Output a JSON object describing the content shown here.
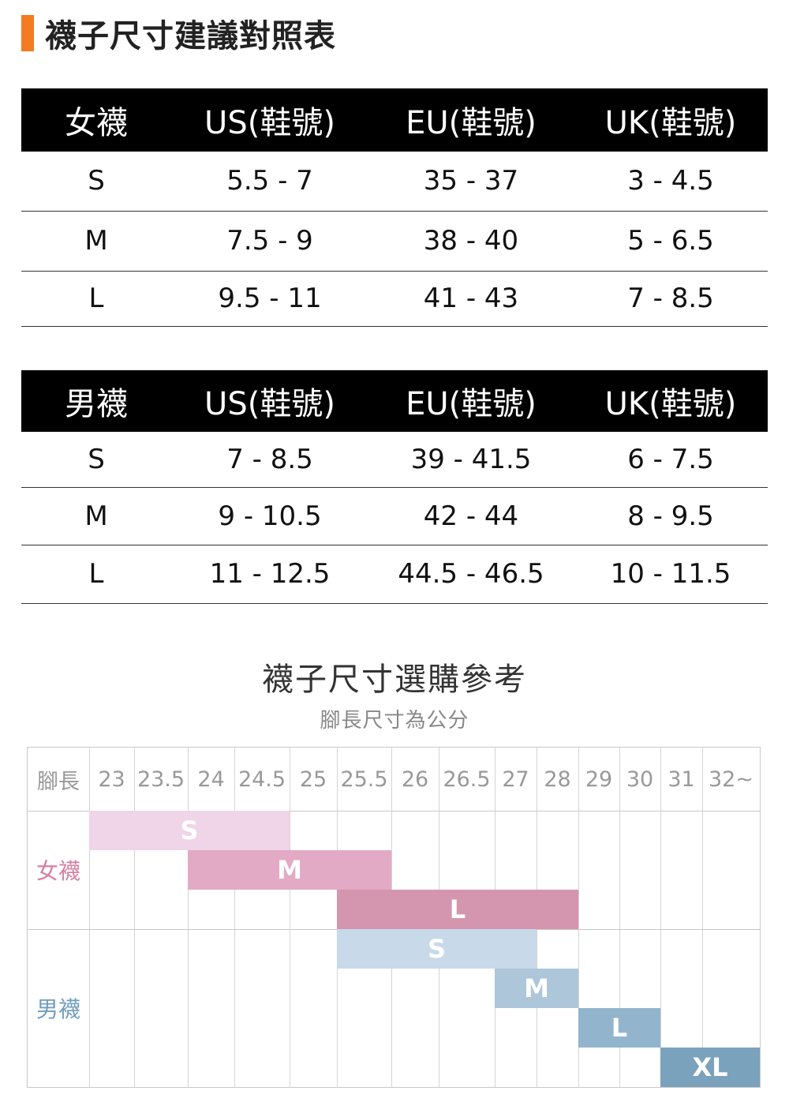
{
  "header": {
    "title": "襪子尺寸建議對照表",
    "accent_color": "#f47b20"
  },
  "women_table": {
    "headers": [
      "女襪",
      "US(鞋號)",
      "EU(鞋號)",
      "UK(鞋號)"
    ],
    "rows": [
      [
        "S",
        "5.5 - 7",
        "35 - 37",
        "3 - 4.5"
      ],
      [
        "M",
        "7.5 - 9",
        "38 - 40",
        "5 - 6.5"
      ],
      [
        "L",
        "9.5 - 11",
        "41 - 43",
        "7 - 8.5"
      ]
    ]
  },
  "men_table": {
    "headers": [
      "男襪",
      "US(鞋號)",
      "EU(鞋號)",
      "UK(鞋號)"
    ],
    "rows": [
      [
        "S",
        "7 - 8.5",
        "39 - 41.5",
        "6 - 7.5"
      ],
      [
        "M",
        "9 - 10.5",
        "42 - 44",
        "8 - 9.5"
      ],
      [
        "L",
        "11 - 12.5",
        "44.5 - 46.5",
        "10 - 11.5"
      ]
    ]
  },
  "chart": {
    "title": "襪子尺寸選購參考",
    "subtitle": "腳長尺寸為公分",
    "header_label": "腳長",
    "columns": [
      "23",
      "23.5",
      "24",
      "24.5",
      "25",
      "25.5",
      "26",
      "26.5",
      "27",
      "28",
      "29",
      "30",
      "31",
      "32~"
    ],
    "groups": [
      {
        "label": "女襪",
        "color": "#d77fa1"
      },
      {
        "label": "男襪",
        "color": "#6f9dbf"
      }
    ],
    "bars": [
      {
        "group": 0,
        "label": "S",
        "start_col": 0,
        "end_col": 3,
        "color": "#efd5e7"
      },
      {
        "group": 0,
        "label": "M",
        "start_col": 2,
        "end_col": 5,
        "color": "#e2aac4"
      },
      {
        "group": 0,
        "label": "L",
        "start_col": 5,
        "end_col": 9,
        "color": "#d496ae"
      },
      {
        "group": 1,
        "label": "S",
        "start_col": 5,
        "end_col": 8,
        "color": "#c8d9e9"
      },
      {
        "group": 1,
        "label": "M",
        "start_col": 8,
        "end_col": 9,
        "color": "#adc6d9"
      },
      {
        "group": 1,
        "label": "L",
        "start_col": 10,
        "end_col": 11,
        "color": "#92b5cd"
      },
      {
        "group": 1,
        "label": "XL",
        "start_col": 12,
        "end_col": 13,
        "color": "#7ba2bc"
      }
    ]
  }
}
